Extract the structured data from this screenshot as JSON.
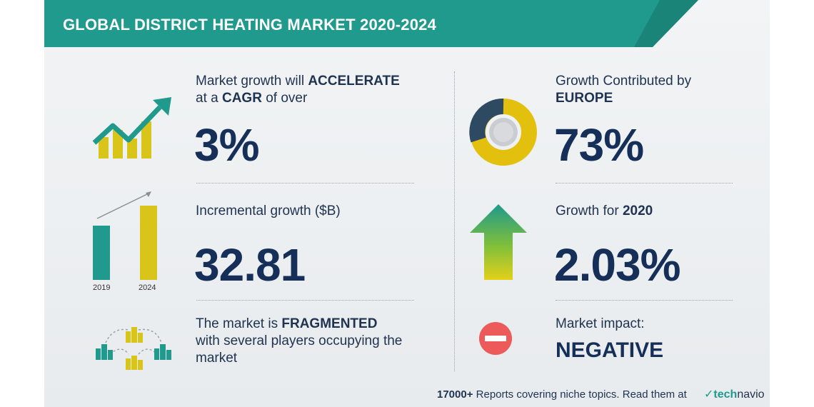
{
  "header": {
    "title": "GLOBAL DISTRICT HEATING MARKET 2020-2024"
  },
  "cagr": {
    "line1_pre": "Market growth will ",
    "line1_bold": "ACCELERATE",
    "line2_pre": "at a ",
    "line2_bold": "CAGR",
    "line2_post": " of over",
    "value": "3%"
  },
  "incremental": {
    "label": "Incremental growth ($B)",
    "value": "32.81",
    "years": [
      "2019",
      "2024"
    ]
  },
  "fragmented": {
    "line1_pre": "The market is ",
    "line1_bold": "FRAGMENTED",
    "line2": "with several players occupying the",
    "line3": "market"
  },
  "europe": {
    "line1": "Growth Contributed by",
    "line2": "EUROPE",
    "value": "73%"
  },
  "growth2020": {
    "label_pre": "Growth for ",
    "label_year": "2020",
    "value": "2.03%"
  },
  "impact": {
    "label": "Market impact:",
    "value": "NEGATIVE"
  },
  "footer": {
    "count": "17000+",
    "text": " Reports covering niche topics. Read them at",
    "logo_t": "tech",
    "logo_n": "navio"
  },
  "colors": {
    "teal": "#1f9a8c",
    "navy": "#152f58",
    "yellow": "#e3c819",
    "red": "#ec5a5a",
    "green": "#2e9e5b"
  },
  "icons": [
    "growth-chart-icon",
    "bar-growth-icon",
    "buildings-network-icon",
    "donut-icon",
    "up-arrow-icon",
    "minus-circle-icon"
  ]
}
